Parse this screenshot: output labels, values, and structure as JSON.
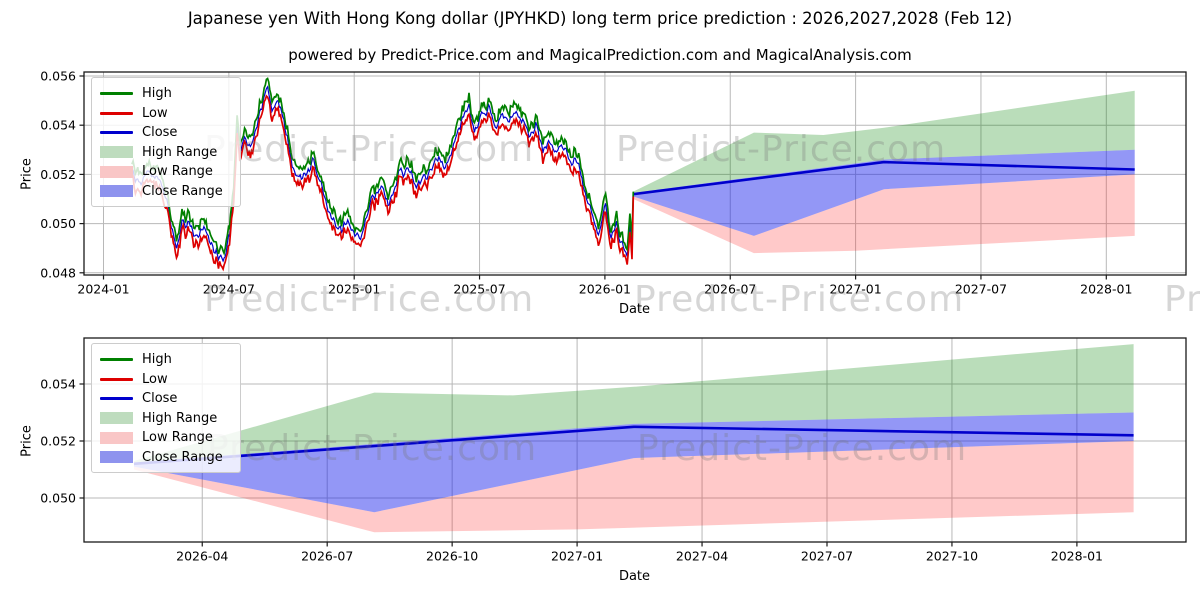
{
  "page": {
    "title": "Japanese yen With Hong Kong dollar (JPYHKD) long term price prediction : 2026,2027,2028 (Feb 12)",
    "subtitle": "powered by Predict-Price.com and MagicalPrediction.com and MagicalAnalysis.com"
  },
  "watermark": {
    "text": "Predict-Price.com"
  },
  "legend": {
    "items": [
      {
        "label": "High",
        "swatch": "line",
        "color": "#008000"
      },
      {
        "label": "Low",
        "swatch": "line",
        "color": "#dd0000"
      },
      {
        "label": "Close",
        "swatch": "line",
        "color": "#0000cd"
      },
      {
        "label": "High Range",
        "swatch": "patch",
        "color": "#bedcbe"
      },
      {
        "label": "Low Range",
        "swatch": "patch",
        "color": "#f9c6c6"
      },
      {
        "label": "Close Range",
        "swatch": "patch",
        "color": "#8e93ee"
      }
    ]
  },
  "colors": {
    "high_line": "#008000",
    "low_line": "#dd0000",
    "close_line": "#0000cd",
    "prediction_close_line": "#0000cc",
    "high_range_fill": "rgba(0,128,0,0.27)",
    "low_range_fill": "rgba(255,30,30,0.24)",
    "close_range_fill": "rgba(25,35,235,0.47)",
    "grid": "#b8b8b8",
    "frame": "#1a1a1a",
    "tick_text": "#000000"
  },
  "chart_data": [
    {
      "type": "line",
      "panel": "top",
      "title": "JPYHKD history (High/Low/Close) with long-term prediction ranges",
      "xlabel": "Date",
      "ylabel": "Price",
      "x_ticks": [
        "2024-01",
        "2024-07",
        "2025-01",
        "2025-07",
        "2026-01",
        "2026-07",
        "2027-01",
        "2027-07",
        "2028-01"
      ],
      "y_ticks": [
        0.048,
        0.05,
        0.052,
        0.054,
        0.056
      ],
      "ylim": [
        0.0477,
        0.0563
      ],
      "xlim": [
        "2023-12-01",
        "2028-04-25"
      ],
      "grid": true,
      "legend_position": "upper left",
      "history": {
        "noise": 0.00026,
        "spread_base": 0.00018,
        "spread_rand": 0.0003,
        "points": [
          [
            "2024-02-12",
            0.0521
          ],
          [
            "2024-02-22",
            0.0517
          ],
          [
            "2024-03-05",
            0.0521
          ],
          [
            "2024-03-15",
            0.0519
          ],
          [
            "2024-03-25",
            0.0516
          ],
          [
            "2024-04-02",
            0.0508
          ],
          [
            "2024-04-10",
            0.0498
          ],
          [
            "2024-04-16",
            0.049
          ],
          [
            "2024-04-24",
            0.0499
          ],
          [
            "2024-05-04",
            0.05
          ],
          [
            "2024-05-14",
            0.0495
          ],
          [
            "2024-05-24",
            0.0498
          ],
          [
            "2024-06-03",
            0.0493
          ],
          [
            "2024-06-13",
            0.0488
          ],
          [
            "2024-06-23",
            0.0484
          ],
          [
            "2024-07-02",
            0.0495
          ],
          [
            "2024-07-08",
            0.0512
          ],
          [
            "2024-07-13",
            0.054
          ],
          [
            "2024-07-17",
            0.0528
          ],
          [
            "2024-07-24",
            0.0533
          ],
          [
            "2024-08-02",
            0.053
          ],
          [
            "2024-08-12",
            0.054
          ],
          [
            "2024-08-22",
            0.0552
          ],
          [
            "2024-08-27",
            0.0556
          ],
          [
            "2024-09-03",
            0.0546
          ],
          [
            "2024-09-12",
            0.0551
          ],
          [
            "2024-09-22",
            0.0538
          ],
          [
            "2024-10-02",
            0.0525
          ],
          [
            "2024-10-12",
            0.0517
          ],
          [
            "2024-10-22",
            0.052
          ],
          [
            "2024-11-03",
            0.0525
          ],
          [
            "2024-11-12",
            0.0517
          ],
          [
            "2024-11-22",
            0.0508
          ],
          [
            "2024-12-03",
            0.05
          ],
          [
            "2024-12-13",
            0.0497
          ],
          [
            "2024-12-22",
            0.0501
          ],
          [
            "2025-01-02",
            0.0493
          ],
          [
            "2025-01-12",
            0.0496
          ],
          [
            "2025-01-26",
            0.051
          ],
          [
            "2025-02-10",
            0.0515
          ],
          [
            "2025-02-20",
            0.0507
          ],
          [
            "2025-03-05",
            0.052
          ],
          [
            "2025-03-20",
            0.0522
          ],
          [
            "2025-04-02",
            0.0516
          ],
          [
            "2025-04-16",
            0.052
          ],
          [
            "2025-05-01",
            0.0527
          ],
          [
            "2025-05-12",
            0.0524
          ],
          [
            "2025-05-24",
            0.0532
          ],
          [
            "2025-06-08",
            0.0545
          ],
          [
            "2025-06-16",
            0.0548
          ],
          [
            "2025-06-24",
            0.0537
          ],
          [
            "2025-07-04",
            0.0543
          ],
          [
            "2025-07-14",
            0.0547
          ],
          [
            "2025-07-24",
            0.0538
          ],
          [
            "2025-08-04",
            0.0544
          ],
          [
            "2025-08-14",
            0.054
          ],
          [
            "2025-08-24",
            0.0546
          ],
          [
            "2025-09-03",
            0.0542
          ],
          [
            "2025-09-12",
            0.0535
          ],
          [
            "2025-09-22",
            0.0539
          ],
          [
            "2025-10-02",
            0.0531
          ],
          [
            "2025-10-12",
            0.0534
          ],
          [
            "2025-10-22",
            0.0528
          ],
          [
            "2025-11-02",
            0.0531
          ],
          [
            "2025-11-12",
            0.0523
          ],
          [
            "2025-11-22",
            0.0526
          ],
          [
            "2025-12-03",
            0.0512
          ],
          [
            "2025-12-12",
            0.0504
          ],
          [
            "2025-12-22",
            0.0497
          ],
          [
            "2026-01-02",
            0.0507
          ],
          [
            "2026-01-10",
            0.0493
          ],
          [
            "2026-01-18",
            0.0499
          ],
          [
            "2026-01-28",
            0.049
          ],
          [
            "2026-02-03",
            0.0487
          ],
          [
            "2026-02-07",
            0.0499
          ],
          [
            "2026-02-10",
            0.0492
          ],
          [
            "2026-02-12",
            0.0512
          ]
        ]
      },
      "prediction": {
        "close": [
          [
            "2026-02-12",
            0.0512
          ],
          [
            "2027-02-12",
            0.0525
          ],
          [
            "2028-02-12",
            0.0522
          ]
        ],
        "close_range_upper": [
          [
            "2026-02-12",
            0.05125
          ],
          [
            "2027-02-12",
            0.0526
          ],
          [
            "2028-02-12",
            0.053
          ]
        ],
        "close_range_lower": [
          [
            "2026-02-12",
            0.0511
          ],
          [
            "2026-08-05",
            0.0495
          ],
          [
            "2027-02-12",
            0.0514
          ],
          [
            "2028-02-12",
            0.052
          ]
        ],
        "high_range_upper": [
          [
            "2026-02-12",
            0.0513
          ],
          [
            "2026-08-05",
            0.0537
          ],
          [
            "2026-11-15",
            0.0536
          ],
          [
            "2027-02-12",
            0.0539
          ],
          [
            "2028-02-12",
            0.0554
          ]
        ],
        "low_range_lower": [
          [
            "2026-02-12",
            0.051
          ],
          [
            "2026-08-05",
            0.0488
          ],
          [
            "2027-01-01",
            0.0489
          ],
          [
            "2028-02-12",
            0.0495
          ]
        ]
      }
    },
    {
      "type": "area",
      "panel": "bottom",
      "title": "JPYHKD prediction detail 2026-2028",
      "xlabel": "Date",
      "ylabel": "Price",
      "x_ticks": [
        "2026-04",
        "2026-07",
        "2026-10",
        "2027-01",
        "2027-04",
        "2027-07",
        "2027-10",
        "2028-01"
      ],
      "y_ticks": [
        0.05,
        0.052,
        0.054
      ],
      "ylim": [
        0.0484,
        0.0556
      ],
      "xlim": [
        "2026-01-08",
        "2028-03-20"
      ],
      "grid": true,
      "legend_position": "upper left",
      "prediction": {
        "close": [
          [
            "2026-02-12",
            0.0512
          ],
          [
            "2027-02-12",
            0.0525
          ],
          [
            "2028-02-12",
            0.0522
          ]
        ],
        "close_range_upper": [
          [
            "2026-02-12",
            0.05125
          ],
          [
            "2027-02-12",
            0.0526
          ],
          [
            "2028-02-12",
            0.053
          ]
        ],
        "close_range_lower": [
          [
            "2026-02-12",
            0.0511
          ],
          [
            "2026-08-05",
            0.0495
          ],
          [
            "2027-02-12",
            0.0514
          ],
          [
            "2028-02-12",
            0.052
          ]
        ],
        "high_range_upper": [
          [
            "2026-02-12",
            0.0513
          ],
          [
            "2026-08-05",
            0.0537
          ],
          [
            "2026-11-15",
            0.0536
          ],
          [
            "2027-02-12",
            0.0539
          ],
          [
            "2028-02-12",
            0.0554
          ]
        ],
        "low_range_lower": [
          [
            "2026-02-12",
            0.051
          ],
          [
            "2026-08-05",
            0.0488
          ],
          [
            "2027-01-01",
            0.0489
          ],
          [
            "2028-02-12",
            0.0495
          ]
        ]
      }
    }
  ]
}
